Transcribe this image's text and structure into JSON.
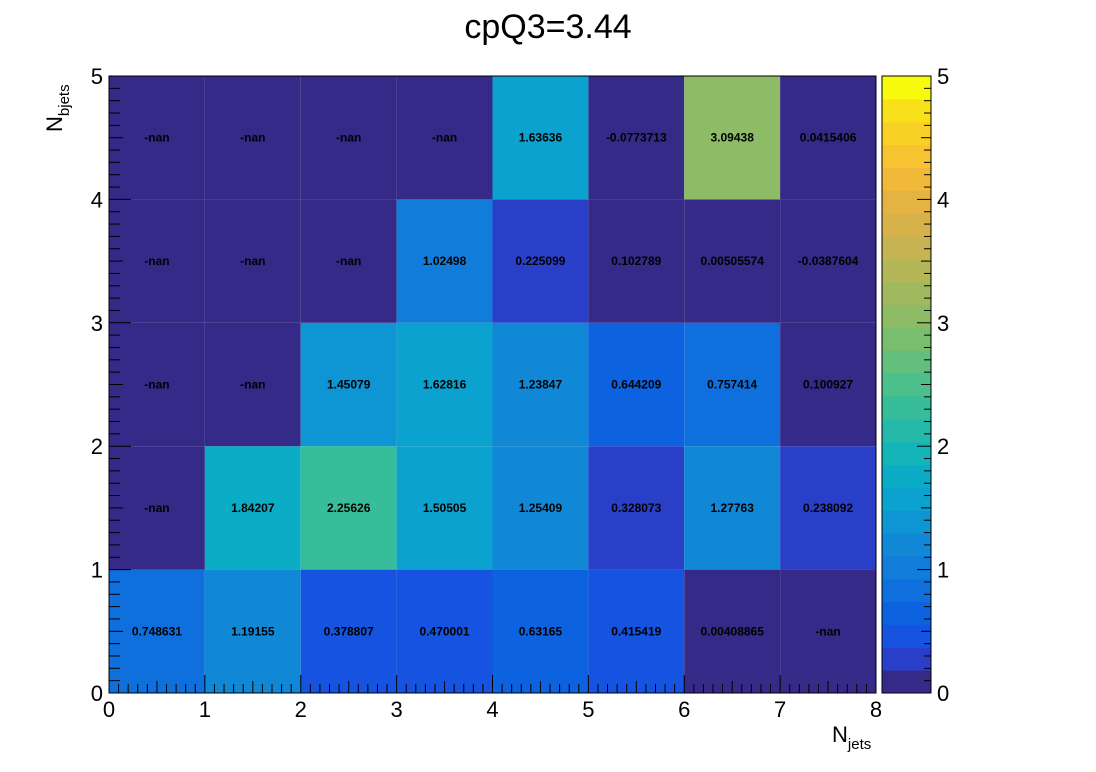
{
  "chart_data": {
    "type": "heatmap",
    "title": "cpQ3=3.44",
    "xlabel": {
      "main": "N",
      "sub": "jets"
    },
    "ylabel": {
      "main": "N",
      "sub": "bjets"
    },
    "xlim": [
      0,
      8
    ],
    "ylim": [
      0,
      5
    ],
    "zlim": [
      0,
      5
    ],
    "x_ticks": [
      "0",
      "1",
      "2",
      "3",
      "4",
      "5",
      "6",
      "7",
      "8"
    ],
    "y_ticks": [
      "0",
      "1",
      "2",
      "3",
      "4",
      "5"
    ],
    "z_ticks": [
      "0",
      "1",
      "2",
      "3",
      "4",
      "5"
    ],
    "colormap": "parula",
    "rows": [
      {
        "y_bin": [
          0,
          1
        ],
        "values": [
          0.748631,
          1.19155,
          0.378807,
          0.470001,
          0.63165,
          0.415419,
          0.00408865,
          null
        ],
        "labels": [
          "0.748631",
          "1.19155",
          "0.378807",
          "0.470001",
          "0.63165",
          "0.415419",
          "0.00408865",
          "-nan"
        ]
      },
      {
        "y_bin": [
          1,
          2
        ],
        "values": [
          null,
          1.84207,
          2.25626,
          1.50505,
          1.25409,
          0.328073,
          1.27763,
          0.238092
        ],
        "labels": [
          "-nan",
          "1.84207",
          "2.25626",
          "1.50505",
          "1.25409",
          "0.328073",
          "1.27763",
          "0.238092"
        ]
      },
      {
        "y_bin": [
          2,
          3
        ],
        "values": [
          null,
          null,
          1.45079,
          1.62816,
          1.23847,
          0.644209,
          0.757414,
          0.100927
        ],
        "labels": [
          "-nan",
          "-nan",
          "1.45079",
          "1.62816",
          "1.23847",
          "0.644209",
          "0.757414",
          "0.100927"
        ]
      },
      {
        "y_bin": [
          3,
          4
        ],
        "values": [
          null,
          null,
          null,
          1.02498,
          0.225099,
          0.102789,
          0.00505574,
          -0.0387604
        ],
        "labels": [
          "-nan",
          "-nan",
          "-nan",
          "1.02498",
          "0.225099",
          "0.102789",
          "0.00505574",
          "-0.0387604"
        ]
      },
      {
        "y_bin": [
          4,
          5
        ],
        "values": [
          null,
          null,
          null,
          null,
          1.63636,
          -0.0773713,
          3.09438,
          0.0415406
        ],
        "labels": [
          "-nan",
          "-nan",
          "-nan",
          "-nan",
          "1.63636",
          "-0.0773713",
          "3.09438",
          "0.0415406"
        ]
      }
    ],
    "nan_color": "#352a87",
    "palette": [
      "#352a87",
      "#2a3fc8",
      "#1553e0",
      "#0d62e0",
      "#0f70dd",
      "#127cda",
      "#1188d6",
      "#0e95d3",
      "#0ba2cf",
      "#0aadc5",
      "#14b5b9",
      "#25b9aa",
      "#38bd9a",
      "#4cbf8a",
      "#62bf7c",
      "#79bd6f",
      "#8ebb66",
      "#a1b95e",
      "#b4b657",
      "#c6b352",
      "#d7b24b",
      "#e5b341",
      "#f0b93a",
      "#f7c331",
      "#f9d126",
      "#f8e01a",
      "#f9fb0e"
    ]
  }
}
